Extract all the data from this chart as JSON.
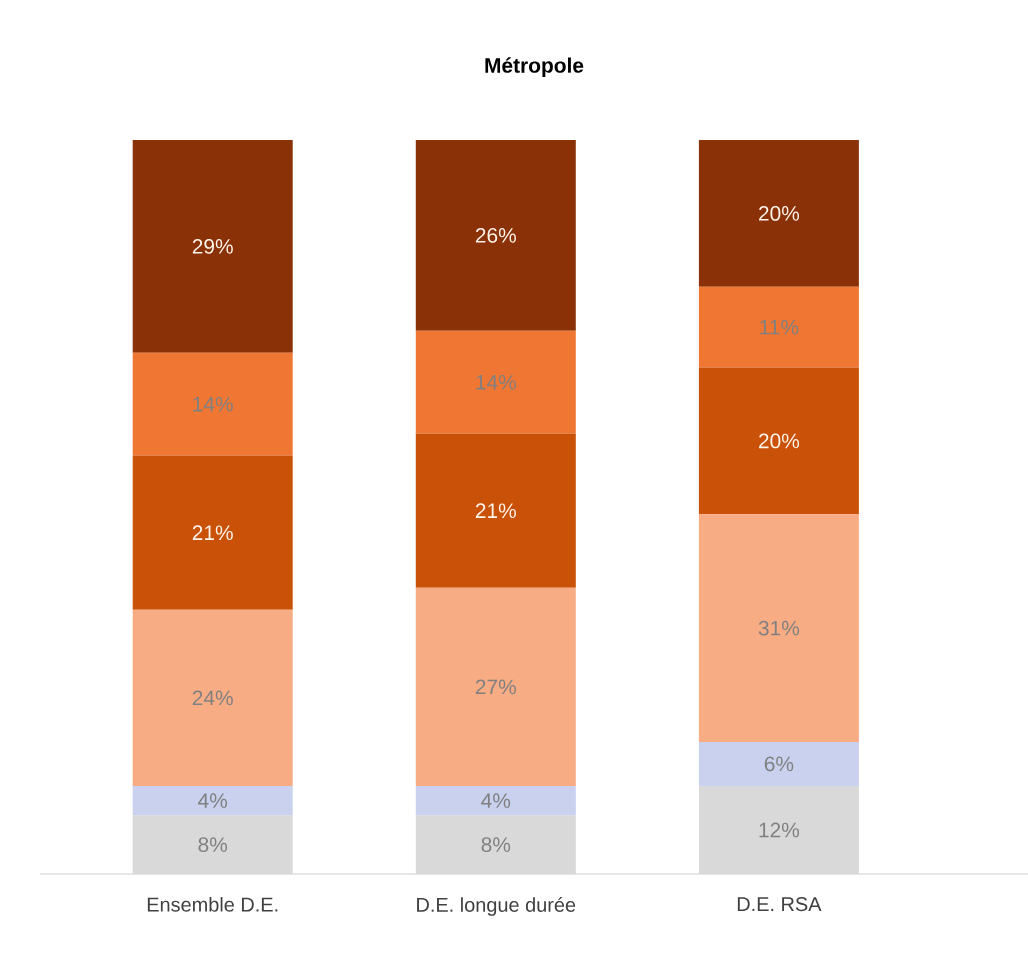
{
  "chart_data": {
    "type": "bar",
    "title": "**Métropole**",
    "stacked": true,
    "categories": [
      "Ensemble D.E.",
      "D.E. longue durée",
      "D.E. RSA"
    ],
    "series": [
      {
        "color": "#d9d9d9",
        "values": [
          8,
          8,
          12
        ],
        "value_labels": [
          "8%",
          "8%",
          "12%"
        ]
      },
      {
        "color": "#c9d1ee",
        "values": [
          4,
          4,
          6
        ],
        "value_labels": [
          "4%",
          "4%",
          "6%"
        ]
      },
      {
        "color": "#f8ac84",
        "values": [
          24,
          27,
          31
        ],
        "value_labels": [
          "24%",
          "27%",
          "31%"
        ]
      },
      {
        "color": "#c95108",
        "values": [
          21,
          21,
          20
        ],
        "value_labels": [
          "21%",
          "21%",
          "20%"
        ]
      },
      {
        "color": "#f07633",
        "values": [
          14,
          14,
          11
        ],
        "value_labels": [
          "14%",
          "14%",
          "11%"
        ]
      },
      {
        "color": "#8b3108",
        "values": [
          29,
          26,
          20
        ],
        "value_labels": [
          "29%",
          "26%",
          "20%"
        ]
      }
    ]
  }
}
